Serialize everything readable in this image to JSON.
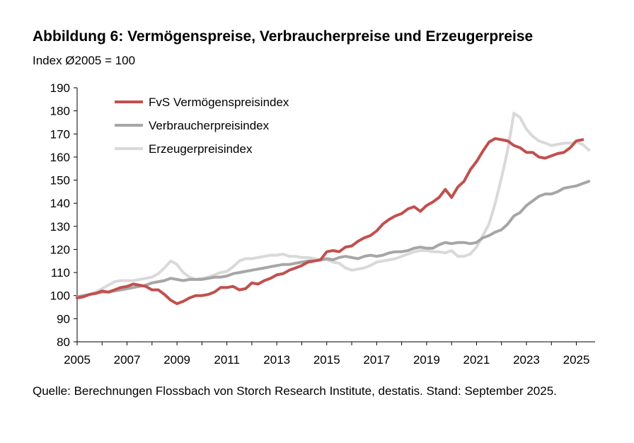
{
  "title": "Abbildung 6: Vermögenspreise, Verbraucherpreise und Erzeugerpreise",
  "subtitle": "Index Ø2005 = 100",
  "source": "Quelle: Berechnungen Flossbach von Storch Research Institute, destatis. Stand: September 2025.",
  "chart_data": {
    "type": "line",
    "title": "Abbildung 6: Vermögenspreise, Verbraucherpreise und Erzeugerpreise",
    "ylabel": "Index Ø2005 = 100",
    "xlabel": "",
    "ylim": [
      80,
      190
    ],
    "xlim": [
      2005,
      2025.75
    ],
    "yticks": [
      80,
      90,
      100,
      110,
      120,
      130,
      140,
      150,
      160,
      170,
      180,
      190
    ],
    "xticks": [
      2005,
      2007,
      2009,
      2011,
      2013,
      2015,
      2017,
      2019,
      2021,
      2023,
      2025
    ],
    "legend_position": "top-left",
    "series": [
      {
        "name": "FvS Vermögenspreisindex",
        "color": "#c0504d",
        "x": [
          2005.0,
          2005.25,
          2005.5,
          2005.75,
          2006.0,
          2006.25,
          2006.5,
          2006.75,
          2007.0,
          2007.25,
          2007.5,
          2007.75,
          2008.0,
          2008.25,
          2008.5,
          2008.75,
          2009.0,
          2009.25,
          2009.5,
          2009.75,
          2010.0,
          2010.25,
          2010.5,
          2010.75,
          2011.0,
          2011.25,
          2011.5,
          2011.75,
          2012.0,
          2012.25,
          2012.5,
          2012.75,
          2013.0,
          2013.25,
          2013.5,
          2013.75,
          2014.0,
          2014.25,
          2014.5,
          2014.75,
          2015.0,
          2015.25,
          2015.5,
          2015.75,
          2016.0,
          2016.25,
          2016.5,
          2016.75,
          2017.0,
          2017.25,
          2017.5,
          2017.75,
          2018.0,
          2018.25,
          2018.5,
          2018.75,
          2019.0,
          2019.25,
          2019.5,
          2019.75,
          2020.0,
          2020.25,
          2020.5,
          2020.75,
          2021.0,
          2021.25,
          2021.5,
          2021.75,
          2022.0,
          2022.25,
          2022.5,
          2022.75,
          2023.0,
          2023.25,
          2023.5,
          2023.75,
          2024.0,
          2024.25,
          2024.5,
          2024.75,
          2025.0,
          2025.25
        ],
        "values": [
          99,
          99.5,
          100.5,
          101,
          102,
          101.5,
          102.5,
          103.5,
          104,
          105,
          104.5,
          104,
          102.5,
          102.5,
          100.5,
          98,
          96.5,
          97.5,
          99,
          100,
          100,
          100.5,
          101.5,
          103.5,
          103.5,
          104,
          102.5,
          103,
          105.5,
          105,
          106.5,
          107.5,
          109,
          109.5,
          111,
          112,
          113,
          114.5,
          115,
          115.5,
          119,
          119.5,
          119,
          121,
          121.5,
          123.5,
          125,
          126,
          128,
          131,
          133,
          134.5,
          135.5,
          137.5,
          138.5,
          136.5,
          139,
          140.5,
          142.5,
          146,
          142.5,
          147,
          149.5,
          154.5,
          158,
          162.5,
          166.5,
          168,
          167.5,
          167,
          165,
          164,
          162,
          162,
          160,
          159.5,
          160.5,
          161.5,
          162,
          164,
          167,
          167.5
        ]
      },
      {
        "name": "Verbraucherpreisindex",
        "color": "#a6a6a6",
        "x": [
          2005.0,
          2005.25,
          2005.5,
          2005.75,
          2006.0,
          2006.25,
          2006.5,
          2006.75,
          2007.0,
          2007.25,
          2007.5,
          2007.75,
          2008.0,
          2008.25,
          2008.5,
          2008.75,
          2009.0,
          2009.25,
          2009.5,
          2009.75,
          2010.0,
          2010.25,
          2010.5,
          2010.75,
          2011.0,
          2011.25,
          2011.5,
          2011.75,
          2012.0,
          2012.25,
          2012.5,
          2012.75,
          2013.0,
          2013.25,
          2013.5,
          2013.75,
          2014.0,
          2014.25,
          2014.5,
          2014.75,
          2015.0,
          2015.25,
          2015.5,
          2015.75,
          2016.0,
          2016.25,
          2016.5,
          2016.75,
          2017.0,
          2017.25,
          2017.5,
          2017.75,
          2018.0,
          2018.25,
          2018.5,
          2018.75,
          2019.0,
          2019.25,
          2019.5,
          2019.75,
          2020.0,
          2020.25,
          2020.5,
          2020.75,
          2021.0,
          2021.25,
          2021.5,
          2021.75,
          2022.0,
          2022.25,
          2022.5,
          2022.75,
          2023.0,
          2023.25,
          2023.5,
          2023.75,
          2024.0,
          2024.25,
          2024.5,
          2024.75,
          2025.0,
          2025.25,
          2025.5
        ],
        "values": [
          99.5,
          100,
          100.5,
          101,
          101.5,
          101.5,
          102,
          102.5,
          103,
          103.5,
          104,
          104.5,
          105.5,
          106,
          106.5,
          107.5,
          107,
          106.5,
          107,
          107,
          107,
          107.5,
          108,
          108,
          108.5,
          109.5,
          110,
          110.5,
          111,
          111.5,
          112,
          112.5,
          113,
          113.5,
          113.5,
          114,
          114.5,
          115,
          115,
          115.5,
          116,
          115.5,
          116.5,
          117,
          116.5,
          116,
          117,
          117.5,
          117,
          117.5,
          118.5,
          119,
          119,
          119.5,
          120.5,
          121,
          120.5,
          120.5,
          122,
          123,
          122.5,
          123,
          123,
          122.5,
          123,
          125,
          126,
          127.5,
          128.5,
          131,
          134.5,
          136,
          139,
          141,
          143,
          144,
          144,
          145,
          146.5,
          147,
          147.5,
          148.5,
          149.5
        ]
      },
      {
        "name": "Erzeugerpreisindex",
        "color": "#d9d9d9",
        "x": [
          2005.0,
          2005.25,
          2005.5,
          2005.75,
          2006.0,
          2006.25,
          2006.5,
          2006.75,
          2007.0,
          2007.25,
          2007.5,
          2007.75,
          2008.0,
          2008.25,
          2008.5,
          2008.75,
          2009.0,
          2009.25,
          2009.5,
          2009.75,
          2010.0,
          2010.25,
          2010.5,
          2010.75,
          2011.0,
          2011.25,
          2011.5,
          2011.75,
          2012.0,
          2012.25,
          2012.5,
          2012.75,
          2013.0,
          2013.25,
          2013.5,
          2013.75,
          2014.0,
          2014.25,
          2014.5,
          2014.75,
          2015.0,
          2015.25,
          2015.5,
          2015.75,
          2016.0,
          2016.25,
          2016.5,
          2016.75,
          2017.0,
          2017.25,
          2017.5,
          2017.75,
          2018.0,
          2018.25,
          2018.5,
          2018.75,
          2019.0,
          2019.25,
          2019.5,
          2019.75,
          2020.0,
          2020.25,
          2020.5,
          2020.75,
          2021.0,
          2021.25,
          2021.5,
          2021.75,
          2022.0,
          2022.25,
          2022.5,
          2022.75,
          2023.0,
          2023.25,
          2023.5,
          2023.75,
          2024.0,
          2024.25,
          2024.5,
          2024.75,
          2025.0,
          2025.25,
          2025.5
        ],
        "values": [
          99,
          99.5,
          100.5,
          101.5,
          103,
          104.5,
          106,
          106.5,
          106.5,
          106.5,
          107,
          107.5,
          108,
          109.5,
          112,
          115,
          113.5,
          110,
          108,
          107,
          107.5,
          108,
          109,
          110,
          110.5,
          112.5,
          115,
          116,
          116,
          116.5,
          117,
          117.5,
          117.5,
          118,
          117,
          117,
          116.5,
          116.5,
          116,
          115.5,
          115.5,
          114.5,
          114,
          112,
          111,
          111.5,
          112,
          113,
          114.5,
          115,
          115.5,
          116,
          117,
          118,
          119,
          119.5,
          119.5,
          119,
          119,
          118.5,
          119.5,
          117,
          117,
          118,
          121,
          126,
          131,
          140,
          151,
          163,
          179,
          177,
          172,
          169,
          167,
          166,
          165,
          165.5,
          166,
          166,
          166.5,
          165.5,
          163
        ]
      }
    ]
  }
}
